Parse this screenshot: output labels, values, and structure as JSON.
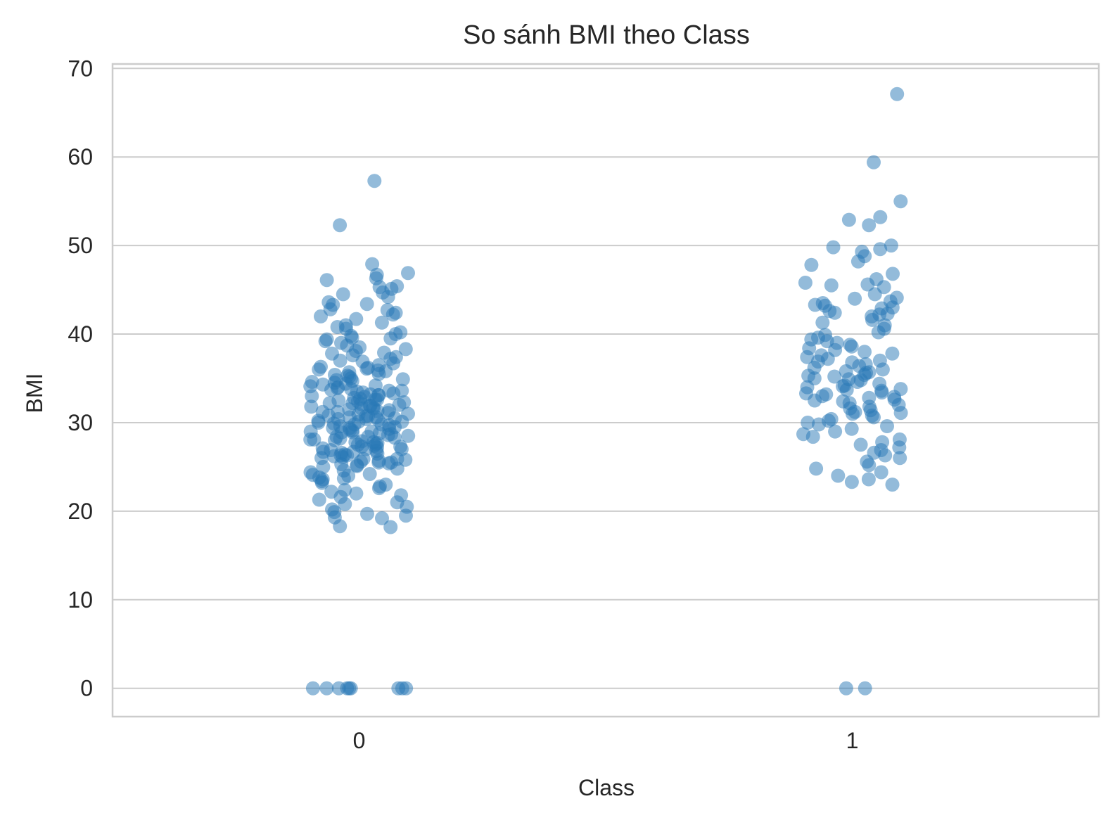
{
  "chart_data": {
    "type": "scatter",
    "title": "So sánh BMI theo Class",
    "xlabel": "Class",
    "ylabel": "BMI",
    "categories": [
      "0",
      "1"
    ],
    "yticks": [
      "0",
      "10",
      "20",
      "30",
      "40",
      "50",
      "60",
      "70"
    ],
    "ylim": [
      -3.2,
      70.5
    ],
    "grid": "horizontal",
    "point_color": "#2878b5",
    "point_alpha": 0.5,
    "series": [
      {
        "category": "0",
        "values": [
          57.3,
          52.3,
          47.9,
          46.9,
          46.7,
          46.3,
          46.1,
          45.4,
          45.3,
          45.1,
          44.7,
          44.5,
          44.2,
          43.6,
          43.4,
          43.3,
          42.8,
          42.7,
          42.4,
          42.2,
          42.0,
          41.7,
          41.3,
          41.0,
          40.8,
          40.6,
          40.2,
          40.0,
          39.8,
          39.6,
          39.5,
          39.4,
          39.2,
          39.0,
          38.7,
          38.5,
          38.3,
          38.1,
          37.9,
          37.8,
          37.6,
          37.4,
          37.2,
          37.0,
          36.9,
          36.7,
          36.5,
          36.3,
          36.2,
          36.0,
          35.9,
          35.7,
          35.5,
          35.4,
          35.3,
          35.2,
          35.0,
          34.9,
          34.7,
          34.6,
          34.5,
          34.3,
          34.2,
          34.1,
          34.0,
          33.9,
          33.8,
          33.7,
          33.6,
          33.5,
          33.4,
          33.3,
          33.2,
          33.1,
          33.0,
          32.9,
          32.8,
          32.7,
          32.6,
          32.5,
          32.4,
          32.3,
          32.2,
          32.1,
          32.0,
          31.9,
          31.8,
          31.7,
          31.6,
          31.5,
          31.4,
          31.3,
          31.2,
          31.1,
          31.0,
          30.9,
          30.8,
          30.7,
          30.6,
          30.5,
          30.4,
          30.3,
          30.2,
          30.1,
          30.0,
          29.9,
          29.8,
          29.7,
          29.6,
          29.5,
          29.4,
          29.3,
          29.2,
          29.1,
          29.0,
          28.9,
          28.8,
          28.7,
          28.6,
          28.5,
          28.4,
          28.3,
          28.2,
          28.1,
          28.0,
          27.9,
          27.8,
          27.7,
          27.6,
          27.5,
          27.4,
          27.3,
          27.2,
          27.1,
          27.0,
          26.9,
          26.8,
          26.7,
          26.6,
          26.5,
          26.4,
          26.3,
          26.2,
          26.1,
          26.0,
          25.9,
          25.8,
          25.7,
          25.6,
          25.5,
          25.4,
          25.3,
          25.2,
          25.1,
          25.0,
          24.8,
          24.6,
          24.4,
          24.2,
          24.0,
          23.8,
          23.6,
          23.4,
          23.2,
          23.0,
          22.8,
          22.6,
          22.4,
          22.2,
          22.0,
          21.8,
          21.6,
          21.3,
          21.0,
          20.8,
          20.5,
          20.2,
          19.9,
          19.7,
          19.5,
          19.3,
          19.2,
          18.3,
          18.2,
          30.4,
          31.6,
          29.8,
          27.3,
          33.1,
          32.6,
          28.4,
          26.7,
          35.8,
          24.1,
          31.2,
          30.1,
          27.8,
          34.4,
          25.5,
          29.0,
          36.1,
          23.7,
          32.2,
          28.9,
          30.8,
          26.3,
          33.6,
          27.0,
          31.9,
          29.4,
          25.9,
          34.8,
          28.1,
          30.6,
          0,
          0,
          0,
          0,
          0,
          0,
          0,
          0,
          0
        ]
      },
      {
        "category": "1",
        "values": [
          67.1,
          59.4,
          55.0,
          53.2,
          52.9,
          52.3,
          50.0,
          49.8,
          49.6,
          49.3,
          48.8,
          48.2,
          47.8,
          46.8,
          46.2,
          45.8,
          45.6,
          45.5,
          45.3,
          44.5,
          44.1,
          44.0,
          43.7,
          43.5,
          43.3,
          43.2,
          43.0,
          42.9,
          42.6,
          42.4,
          42.3,
          42.2,
          42.0,
          41.6,
          41.3,
          41.0,
          40.6,
          40.2,
          39.9,
          39.6,
          39.4,
          39.2,
          39.0,
          38.8,
          38.6,
          38.4,
          38.2,
          38.0,
          37.8,
          37.6,
          37.4,
          37.2,
          37.0,
          36.8,
          36.6,
          36.4,
          36.2,
          36.0,
          35.8,
          35.6,
          35.4,
          35.2,
          35.0,
          34.8,
          34.6,
          34.4,
          34.2,
          34.0,
          33.8,
          33.6,
          33.4,
          33.2,
          33.0,
          32.8,
          32.6,
          32.4,
          32.2,
          32.0,
          31.8,
          31.6,
          31.4,
          31.2,
          31.0,
          30.8,
          30.6,
          30.4,
          30.2,
          30.0,
          29.8,
          29.6,
          29.3,
          29.0,
          28.7,
          28.4,
          28.1,
          27.8,
          27.5,
          27.2,
          26.9,
          26.6,
          26.3,
          26.0,
          25.6,
          25.2,
          24.8,
          24.4,
          24.0,
          23.6,
          23.3,
          23.0,
          34.9,
          33.3,
          35.7,
          32.5,
          36.9,
          31.1,
          34.1,
          33.7,
          35.3,
          32.9,
          0,
          0
        ]
      }
    ]
  }
}
